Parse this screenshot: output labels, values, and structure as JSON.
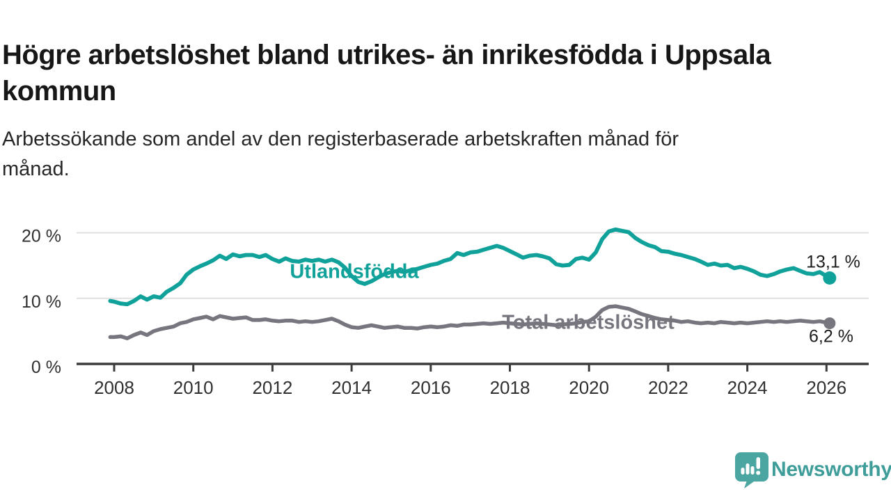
{
  "header": {
    "title_lines": [
      "Högre arbetslöshet bland utrikes- än inrikesfödda i Uppsala",
      "kommun"
    ],
    "subtitle_lines": [
      "Arbetssökande som andel av den registerbaserade arbetskraften månad för",
      "månad."
    ]
  },
  "colors": {
    "teal": "#10A29A",
    "gray": "#77767F",
    "grid": "#E0E0E0",
    "axis": "#3C3C3C",
    "tick_text": "#303030",
    "value_label_text": "#1D1D1D",
    "logo_teal": "#4BA5A0",
    "logo_text_teal": "#3E9C99",
    "background": "#FFFFFF"
  },
  "footer": {
    "brand": "Newsworthy"
  },
  "chart_data": {
    "type": "line",
    "title": "Högre arbetslöshet bland utrikes- än inrikesfödda i Uppsala kommun",
    "subtitle": "Arbetssökande som andel av den registerbaserade arbetskraften månad för månad.",
    "xlabel": "",
    "ylabel": "",
    "grid": "horizontal",
    "legend_position": "inline-labels",
    "xlim": [
      2007.8,
      2027.0
    ],
    "ylim": [
      0,
      21.5
    ],
    "y_ticks": [
      {
        "value": 20,
        "label": "20 %"
      },
      {
        "value": 10,
        "label": "10 %"
      },
      {
        "value": 0,
        "label": "0 %"
      }
    ],
    "x_ticks": [
      {
        "value": 2008,
        "label": "2008"
      },
      {
        "value": 2010,
        "label": "2010"
      },
      {
        "value": 2012,
        "label": "2012"
      },
      {
        "value": 2014,
        "label": "2014"
      },
      {
        "value": 2016,
        "label": "2016"
      },
      {
        "value": 2018,
        "label": "2018"
      },
      {
        "value": 2020,
        "label": "2020"
      },
      {
        "value": 2022,
        "label": "2022"
      },
      {
        "value": 2024,
        "label": "2024"
      },
      {
        "value": 2026,
        "label": "2026"
      }
    ],
    "x": [
      2007.9,
      2008.0,
      2008.17,
      2008.33,
      2008.5,
      2008.67,
      2008.83,
      2009.0,
      2009.17,
      2009.33,
      2009.5,
      2009.67,
      2009.83,
      2010.0,
      2010.17,
      2010.33,
      2010.5,
      2010.67,
      2010.83,
      2011.0,
      2011.17,
      2011.33,
      2011.5,
      2011.67,
      2011.83,
      2012.0,
      2012.17,
      2012.33,
      2012.5,
      2012.67,
      2012.83,
      2013.0,
      2013.17,
      2013.33,
      2013.5,
      2013.67,
      2013.83,
      2014.0,
      2014.17,
      2014.33,
      2014.5,
      2014.67,
      2014.83,
      2015.0,
      2015.17,
      2015.33,
      2015.5,
      2015.67,
      2015.83,
      2016.0,
      2016.17,
      2016.33,
      2016.5,
      2016.67,
      2016.83,
      2017.0,
      2017.17,
      2017.33,
      2017.5,
      2017.67,
      2017.83,
      2018.0,
      2018.17,
      2018.33,
      2018.5,
      2018.67,
      2018.83,
      2019.0,
      2019.17,
      2019.33,
      2019.5,
      2019.67,
      2019.83,
      2020.0,
      2020.17,
      2020.33,
      2020.5,
      2020.67,
      2020.83,
      2021.0,
      2021.17,
      2021.33,
      2021.5,
      2021.67,
      2021.83,
      2022.0,
      2022.17,
      2022.33,
      2022.5,
      2022.67,
      2022.83,
      2023.0,
      2023.17,
      2023.33,
      2023.5,
      2023.67,
      2023.83,
      2024.0,
      2024.17,
      2024.33,
      2024.5,
      2024.67,
      2024.83,
      2025.0,
      2025.17,
      2025.33,
      2025.5,
      2025.67,
      2025.83,
      2026.0,
      2026.08
    ],
    "series": [
      {
        "id": "utlandsfodda",
        "name": "Utlandsfödda",
        "color": "#10A29A",
        "end_label": "13,1 %",
        "end_value": 13.1,
        "values": [
          9.6,
          9.5,
          9.2,
          9.1,
          9.6,
          10.3,
          9.8,
          10.3,
          10.1,
          11.0,
          11.6,
          12.3,
          13.6,
          14.4,
          14.9,
          15.3,
          15.8,
          16.5,
          16.0,
          16.7,
          16.4,
          16.6,
          16.6,
          16.3,
          16.6,
          16.0,
          15.6,
          16.1,
          15.7,
          15.6,
          15.9,
          15.7,
          15.9,
          15.6,
          15.9,
          15.5,
          14.7,
          13.4,
          12.5,
          12.2,
          12.6,
          13.2,
          13.7,
          14.0,
          14.2,
          14.0,
          14.3,
          14.5,
          14.8,
          15.1,
          15.3,
          15.7,
          16.0,
          16.9,
          16.6,
          17.0,
          17.1,
          17.4,
          17.7,
          18.0,
          17.7,
          17.2,
          16.7,
          16.2,
          16.5,
          16.6,
          16.4,
          16.1,
          15.2,
          15.0,
          15.1,
          16.0,
          16.2,
          15.9,
          17.0,
          19.0,
          20.2,
          20.5,
          20.3,
          20.1,
          19.2,
          18.6,
          18.1,
          17.8,
          17.2,
          17.1,
          16.8,
          16.6,
          16.3,
          16.0,
          15.6,
          15.1,
          15.3,
          15.0,
          15.1,
          14.6,
          14.8,
          14.5,
          14.1,
          13.6,
          13.4,
          13.7,
          14.1,
          14.4,
          14.6,
          14.2,
          13.8,
          13.7,
          14.0,
          13.4,
          13.1
        ]
      },
      {
        "id": "total-arbetsloshet",
        "name": "Total arbetslöshet",
        "color": "#77767F",
        "end_label": "6,2 %",
        "end_value": 6.2,
        "values": [
          4.1,
          4.1,
          4.2,
          3.9,
          4.4,
          4.8,
          4.4,
          5.0,
          5.3,
          5.5,
          5.7,
          6.2,
          6.4,
          6.8,
          7.0,
          7.2,
          6.8,
          7.3,
          7.1,
          6.9,
          7.0,
          7.1,
          6.7,
          6.7,
          6.8,
          6.6,
          6.5,
          6.6,
          6.6,
          6.4,
          6.5,
          6.4,
          6.5,
          6.7,
          6.9,
          6.5,
          6.0,
          5.6,
          5.5,
          5.7,
          5.9,
          5.7,
          5.5,
          5.6,
          5.7,
          5.5,
          5.5,
          5.4,
          5.6,
          5.7,
          5.6,
          5.7,
          5.9,
          5.8,
          6.0,
          6.0,
          6.1,
          6.2,
          6.1,
          6.2,
          6.3,
          6.2,
          6.1,
          6.0,
          6.1,
          6.2,
          6.1,
          6.0,
          5.9,
          6.0,
          6.1,
          6.2,
          6.4,
          6.5,
          7.2,
          8.2,
          8.7,
          8.8,
          8.6,
          8.4,
          8.0,
          7.6,
          7.3,
          7.0,
          6.8,
          6.7,
          6.6,
          6.4,
          6.5,
          6.3,
          6.2,
          6.3,
          6.2,
          6.4,
          6.3,
          6.2,
          6.3,
          6.2,
          6.3,
          6.4,
          6.5,
          6.4,
          6.5,
          6.4,
          6.5,
          6.6,
          6.5,
          6.4,
          6.5,
          6.3,
          6.2
        ]
      }
    ]
  }
}
